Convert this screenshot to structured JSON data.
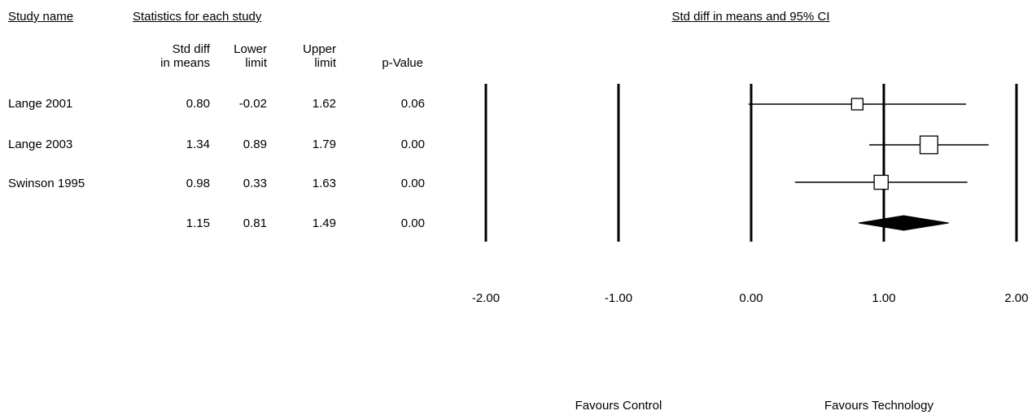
{
  "headers": {
    "study_name": "Study name",
    "statistics": "Statistics for each study",
    "plot_title": "Std diff in means and 95% CI"
  },
  "columns": [
    {
      "line1": "Std diff",
      "line2": "in means"
    },
    {
      "line1": "Lower",
      "line2": "limit"
    },
    {
      "line1": "Upper",
      "line2": "limit"
    },
    {
      "line1": "",
      "line2": "p-Value"
    }
  ],
  "rows": [
    {
      "name": "Lange 2001",
      "std_diff": "0.80",
      "lower": "-0.02",
      "upper": "1.62",
      "p": "0.06"
    },
    {
      "name": "Lange 2003",
      "std_diff": "1.34",
      "lower": "0.89",
      "upper": "1.79",
      "p": "0.00"
    },
    {
      "name": "Swinson 1995",
      "std_diff": "0.98",
      "lower": "0.33",
      "upper": "1.63",
      "p": "0.00"
    },
    {
      "name": "",
      "std_diff": "1.15",
      "lower": "0.81",
      "upper": "1.49",
      "p": "0.00"
    }
  ],
  "chart_data": {
    "type": "forest",
    "title": "Std diff in means and 95% CI",
    "xlim": [
      -2,
      2
    ],
    "ticks": [
      -2,
      -1,
      0,
      1,
      2
    ],
    "tick_labels": [
      "-2.00",
      "-1.00",
      "0.00",
      "1.00",
      "2.00"
    ],
    "studies": [
      {
        "name": "Lange 2001",
        "effect": 0.8,
        "lower": -0.02,
        "upper": 1.62,
        "weight": 1
      },
      {
        "name": "Lange 2003",
        "effect": 1.34,
        "lower": 0.89,
        "upper": 1.79,
        "weight": 2.4
      },
      {
        "name": "Swinson 1995",
        "effect": 0.98,
        "lower": 0.33,
        "upper": 1.63,
        "weight": 1.5
      }
    ],
    "summary": {
      "effect": 1.15,
      "lower": 0.81,
      "upper": 1.49
    },
    "favours_left": "Favours Control",
    "favours_right": "Favours Technology"
  }
}
